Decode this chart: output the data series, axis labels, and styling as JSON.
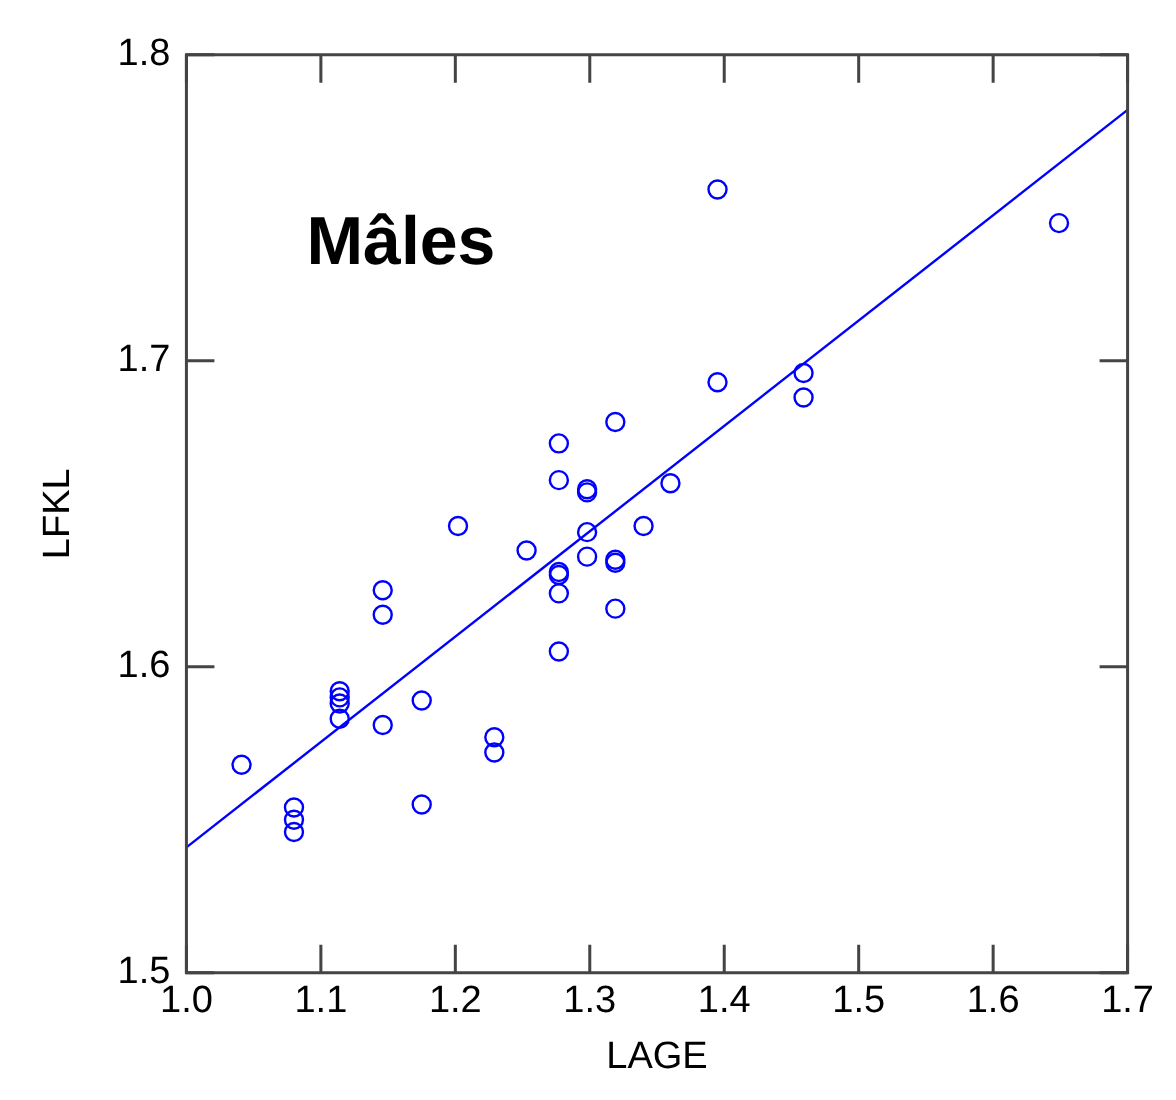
{
  "chart_data": {
    "type": "scatter",
    "title": "Mâles",
    "xlabel": "LAGE",
    "ylabel": "LFKL",
    "marker": "circle",
    "grid": false,
    "legend": false,
    "xlim": [
      1.0,
      1.7
    ],
    "xticks": [
      {
        "value": 1.0,
        "label": "1.0"
      },
      1.1,
      1.2,
      1.3,
      1.4,
      1.5,
      1.6,
      1.7
    ],
    "ylim": [
      1.5,
      1.8
    ],
    "yticks": [
      {
        "value": 1.5,
        "label": "1.5"
      },
      1.6,
      1.7,
      {
        "value": 1.8,
        "label": "1.8"
      }
    ],
    "series": [
      {
        "type": "scatter",
        "color": "#0000ff",
        "x": [
          1.041,
          1.08,
          1.08,
          1.08,
          1.114,
          1.114,
          1.114,
          1.114,
          1.146,
          1.146,
          1.146,
          1.175,
          1.175,
          1.202,
          1.229,
          1.229,
          1.253,
          1.277,
          1.277,
          1.277,
          1.277,
          1.277,
          1.277,
          1.298,
          1.298,
          1.298,
          1.298,
          1.319,
          1.319,
          1.319,
          1.319,
          1.34,
          1.36,
          1.395,
          1.395,
          1.459,
          1.459,
          1.649
        ],
        "values": [
          1.568,
          1.554,
          1.55,
          1.546,
          1.592,
          1.59,
          1.588,
          1.583,
          1.625,
          1.617,
          1.581,
          1.589,
          1.555,
          1.646,
          1.577,
          1.572,
          1.638,
          1.673,
          1.661,
          1.631,
          1.63,
          1.624,
          1.605,
          1.658,
          1.657,
          1.644,
          1.636,
          1.68,
          1.635,
          1.634,
          1.619,
          1.646,
          1.66,
          1.756,
          1.693,
          1.696,
          1.688,
          1.745
        ]
      },
      {
        "type": "line",
        "color": "#0000ff",
        "x": [
          1.0,
          1.7
        ],
        "values": [
          1.541,
          1.782
        ],
        "marker": "none"
      }
    ]
  }
}
